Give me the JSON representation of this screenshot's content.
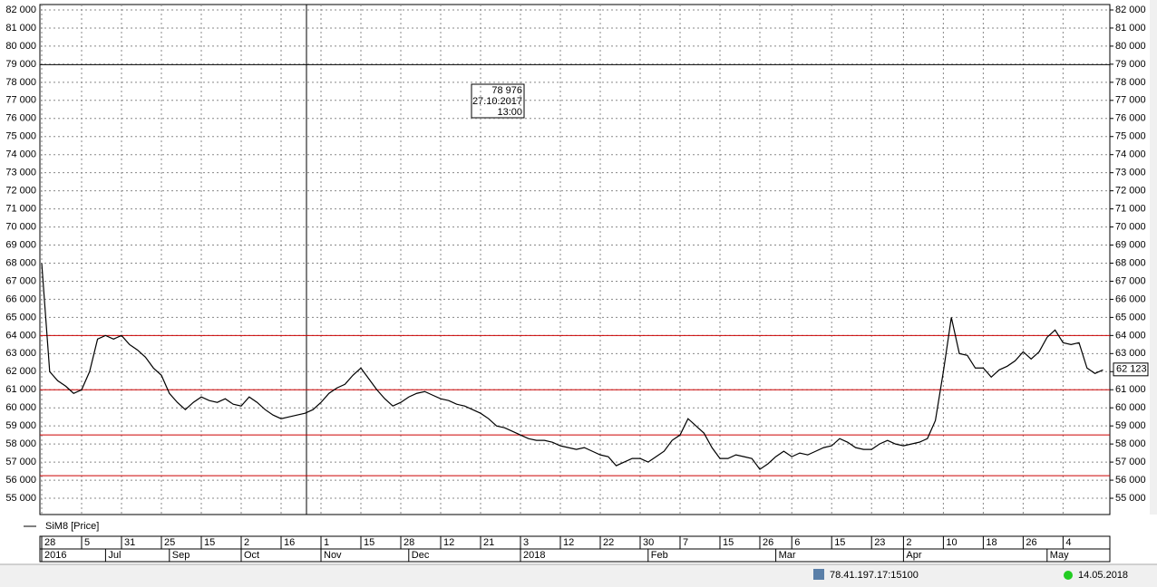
{
  "chart_data": {
    "type": "line",
    "series": [
      {
        "name": "SiM8 [Price]",
        "color": "#000000",
        "values": [
          68000,
          62000,
          61500,
          61200,
          60800,
          61000,
          62000,
          63800,
          64000,
          63800,
          64000,
          63500,
          63200,
          62800,
          62200,
          61800,
          60800,
          60300,
          59900,
          60300,
          60600,
          60400,
          60300,
          60500,
          60200,
          60100,
          60600,
          60300,
          59900,
          59600,
          59400,
          59500,
          59600,
          59700,
          59900,
          60300,
          60800,
          61100,
          61300,
          61800,
          62200,
          61600,
          61000,
          60500,
          60100,
          60300,
          60600,
          60800,
          60900,
          60700,
          60500,
          60400,
          60200,
          60100,
          59900,
          59700,
          59400,
          59000,
          58900,
          58700,
          58500,
          58300,
          58200,
          58200,
          58100,
          57900,
          57800,
          57700,
          57800,
          57600,
          57400,
          57300,
          56800,
          57000,
          57200,
          57200,
          57000,
          57300,
          57600,
          58200,
          58500,
          59400,
          59000,
          58600,
          57800,
          57200,
          57200,
          57400,
          57300,
          57200,
          56600,
          56900,
          57300,
          57600,
          57300,
          57500,
          57400,
          57600,
          57800,
          57900,
          58300,
          58100,
          57800,
          57700,
          57700,
          58000,
          58200,
          58000,
          57900,
          58000,
          58100,
          58300,
          59300,
          62000,
          65000,
          63000,
          62900,
          62200,
          62200,
          61700,
          62100,
          62300,
          62600,
          63100,
          62700,
          63100,
          63900,
          64300,
          63600,
          63500,
          63600,
          62200,
          61900,
          62100
        ]
      }
    ],
    "categories": [
      "28",
      null,
      null,
      null,
      null,
      "5",
      null,
      null,
      null,
      null,
      "31",
      null,
      null,
      null,
      null,
      "25",
      null,
      null,
      null,
      null,
      "15",
      null,
      null,
      null,
      null,
      "2",
      null,
      null,
      null,
      null,
      "16",
      null,
      null,
      null,
      null,
      "1",
      null,
      null,
      null,
      null,
      "15",
      null,
      null,
      null,
      null,
      "28",
      null,
      null,
      null,
      null,
      "12",
      null,
      null,
      null,
      null,
      "21",
      null,
      null,
      null,
      null,
      "3",
      null,
      null,
      null,
      null,
      "12",
      null,
      null,
      null,
      null,
      "22",
      null,
      null,
      null,
      null,
      "30",
      null,
      null,
      null,
      null,
      "7",
      null,
      null,
      null,
      null,
      "15",
      null,
      null,
      null,
      null,
      "26",
      null,
      null,
      null,
      "6",
      null,
      null,
      null,
      null,
      "15",
      null,
      null,
      null,
      null,
      "23",
      null,
      null,
      null,
      "2",
      null,
      null,
      null,
      null,
      "10",
      null,
      null,
      null,
      null,
      "18",
      null,
      null,
      null,
      null,
      "26",
      null,
      null,
      null,
      null,
      "4",
      null,
      null,
      null,
      null,
      null
    ],
    "category_groups": [
      "2016",
      null,
      null,
      null,
      null,
      null,
      null,
      null,
      "Jul",
      null,
      null,
      null,
      null,
      null,
      null,
      null,
      "Sep",
      null,
      null,
      null,
      null,
      null,
      null,
      null,
      null,
      "Oct",
      null,
      null,
      null,
      null,
      null,
      null,
      null,
      null,
      null,
      "Nov",
      null,
      null,
      null,
      null,
      null,
      null,
      null,
      null,
      null,
      null,
      "Dec",
      null,
      null,
      null,
      null,
      null,
      null,
      null,
      null,
      null,
      null,
      null,
      null,
      null,
      "2018",
      null,
      null,
      null,
      null,
      null,
      null,
      null,
      null,
      null,
      null,
      null,
      null,
      null,
      null,
      null,
      "Feb",
      null,
      null,
      null,
      null,
      null,
      null,
      null,
      null,
      null,
      null,
      null,
      null,
      null,
      null,
      null,
      "Mar",
      null,
      null,
      null,
      null,
      null,
      null,
      null,
      null,
      null,
      null,
      null,
      null,
      null,
      null,
      null,
      "Apr",
      null,
      null,
      null,
      null,
      null,
      null,
      null,
      null,
      null,
      null,
      null,
      null,
      null,
      null,
      null,
      null,
      null,
      "May",
      null,
      null,
      null,
      null,
      null,
      null,
      null
    ],
    "ylim": [
      54100,
      82300
    ],
    "yticks": [
      {
        "value": 55000,
        "label": "55 000"
      },
      {
        "value": 56000,
        "label": "56 000"
      },
      {
        "value": 57000,
        "label": "57 000"
      },
      {
        "value": 58000,
        "label": "58 000"
      },
      {
        "value": 59000,
        "label": "59 000"
      },
      {
        "value": 60000,
        "label": "60 000"
      },
      {
        "value": 61000,
        "label": "61 000"
      },
      {
        "value": 62000,
        "label": "62 000"
      },
      {
        "value": 63000,
        "label": "63 000"
      },
      {
        "value": 64000,
        "label": "64 000"
      },
      {
        "value": 65000,
        "label": "65 000"
      },
      {
        "value": 66000,
        "label": "66 000"
      },
      {
        "value": 67000,
        "label": "67 000"
      },
      {
        "value": 68000,
        "label": "68 000"
      },
      {
        "value": 69000,
        "label": "69 000"
      },
      {
        "value": 70000,
        "label": "70 000"
      },
      {
        "value": 71000,
        "label": "71 000"
      },
      {
        "value": 72000,
        "label": "72 000"
      },
      {
        "value": 73000,
        "label": "73 000"
      },
      {
        "value": 74000,
        "label": "74 000"
      },
      {
        "value": 75000,
        "label": "75 000"
      },
      {
        "value": 76000,
        "label": "76 000"
      },
      {
        "value": 77000,
        "label": "77 000"
      },
      {
        "value": 78000,
        "label": "78 000"
      },
      {
        "value": 79000,
        "label": "79 000"
      },
      {
        "value": 80000,
        "label": "80 000"
      },
      {
        "value": 81000,
        "label": "81 000"
      },
      {
        "value": 82000,
        "label": "82 000"
      }
    ],
    "grid": true,
    "hlines": [
      {
        "value": 64000,
        "color": "#cc0000"
      },
      {
        "value": 61000,
        "color": "#cc0000"
      },
      {
        "value": 58500,
        "color": "#cc0000"
      },
      {
        "value": 56250,
        "color": "#cc0000"
      }
    ],
    "crosshair": {
      "value": 78976,
      "label": "78 976",
      "date": "27.10.2017",
      "time": "13:00"
    },
    "last_price": {
      "value": 62123,
      "label": "62 123"
    }
  },
  "status_bar": {
    "server": "78.41.197.17:15100",
    "date": "14.05.2018"
  }
}
